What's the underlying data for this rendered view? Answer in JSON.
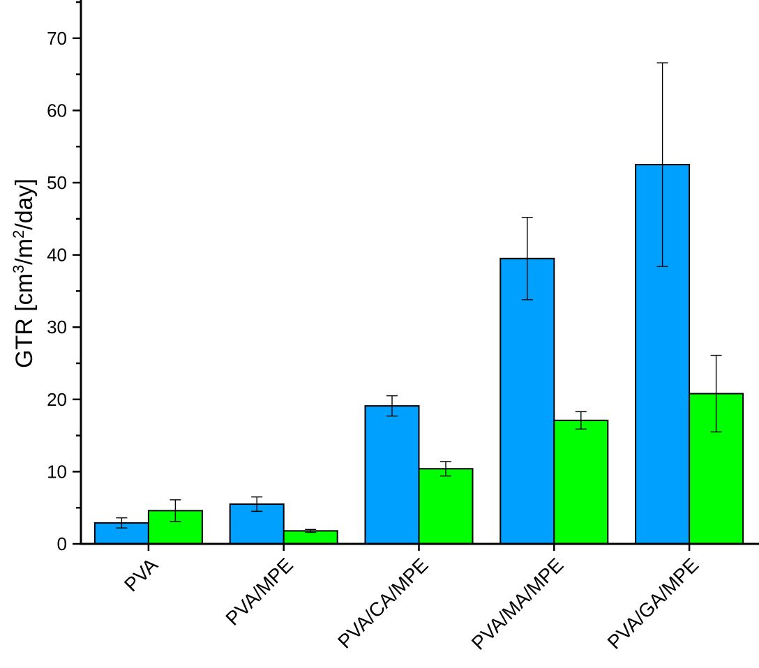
{
  "chart_data": {
    "type": "bar",
    "categories": [
      "PVA",
      "PVA/MPE",
      "PVA/CA/MPE",
      "PVA/MA/MPE",
      "PVA/GA/MPE"
    ],
    "series": [
      {
        "color": "#00a0ff",
        "values": [
          2.9,
          5.5,
          19.1,
          39.5,
          52.5
        ],
        "errors": [
          0.7,
          1.0,
          1.4,
          5.7,
          14.1
        ]
      },
      {
        "color": "#00ff00",
        "values": [
          4.6,
          1.8,
          10.4,
          17.1,
          20.8
        ],
        "errors": [
          1.5,
          0.2,
          1.0,
          1.2,
          5.3
        ]
      }
    ],
    "ylabel": {
      "prefix": "GTR [cm",
      "sup1": "3",
      "mid": "/m",
      "sup2": "2",
      "suffix": "/day]"
    },
    "ylim": [
      0,
      75
    ],
    "yticks": [
      0,
      10,
      20,
      30,
      40,
      50,
      60,
      70
    ],
    "grid": false
  }
}
